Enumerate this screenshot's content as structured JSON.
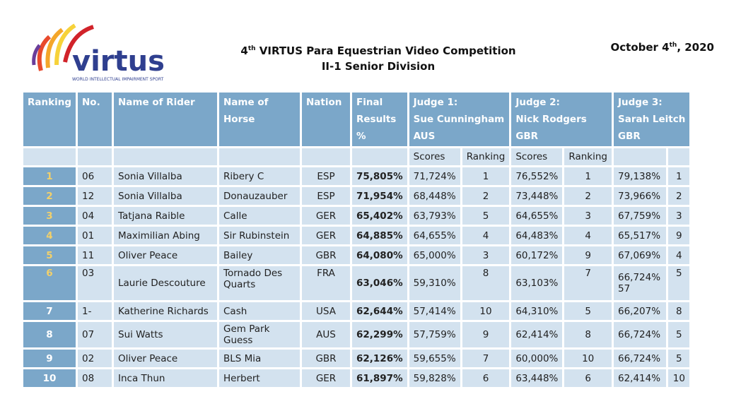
{
  "header": {
    "logo": {
      "name": "virtus",
      "tagline": "WORLD INTELLECTUAL IMPAIRMENT SPORT"
    },
    "title": [
      "4",
      "th",
      " VIRTUS Para Equestrian Video Competition"
    ],
    "subtitle": "II-1 Senior Division",
    "date": [
      "October 4",
      "th",
      ", 2020"
    ]
  },
  "table": {
    "columns": [
      "Ranking",
      "No.",
      "Name of Rider",
      "Name of Horse",
      "Nation",
      "Final Results %"
    ],
    "judges": [
      [
        "Judge 1:",
        "Sue Cunningham",
        "AUS"
      ],
      [
        "Judge 2:",
        "Nick Rodgers",
        "GBR"
      ],
      [
        "Judge 3:",
        "Sarah Leitch",
        "GBR"
      ]
    ],
    "subheaders": [
      "Scores",
      "Ranking",
      "Scores",
      "Ranking"
    ],
    "rows": [
      [
        "1",
        "06",
        "Sonia Villalba",
        "Ribery C",
        "ESP",
        "75,805%",
        "71,724%",
        "1",
        "76,552%",
        "1",
        "79,138%",
        "1"
      ],
      [
        "2",
        "12",
        "Sonia Villalba",
        "Donauzauber",
        "ESP",
        "71,954%",
        "68,448%",
        "2",
        "73,448%",
        "2",
        "73,966%",
        "2"
      ],
      [
        "3",
        "04",
        "Tatjana Raible",
        "Calle",
        "GER",
        "65,402%",
        "63,793%",
        "5",
        "64,655%",
        "3",
        "67,759%",
        "3"
      ],
      [
        "4",
        "01",
        "Maximilian Abing",
        "Sir Rubinstein",
        "GER",
        "64,885%",
        "64,655%",
        "4",
        "64,483%",
        "4",
        "65,517%",
        "9"
      ],
      [
        "5",
        "11",
        "Oliver Peace",
        "Bailey",
        "GBR",
        "64,080%",
        "65,000%",
        "3",
        "60,172%",
        "9",
        "67,069%",
        "4"
      ],
      [
        "6",
        "03",
        "Laurie Descouture",
        "Tornado Des Quarts",
        "FRA",
        "63,046%",
        "59,310%",
        "8",
        "63,103%",
        "7",
        "66,724%\n57",
        "5"
      ],
      [
        "7",
        "1-",
        "Katherine Richards",
        "Cash",
        "USA",
        "62,644%",
        "57,414%",
        "10",
        "64,310%",
        "5",
        "66,207%",
        "8"
      ],
      [
        "8",
        "07",
        "Sui Watts",
        "Gem Park Guess",
        "AUS",
        "62,299%",
        "57,759%",
        "9",
        "62,414%",
        "8",
        "66,724%",
        "5"
      ],
      [
        "9",
        "02",
        "Oliver Peace",
        "BLS Mia",
        "GBR",
        "62,126%",
        "59,655%",
        "7",
        "60,000%",
        "10",
        "66,724%",
        "5"
      ],
      [
        "10",
        "08",
        "Inca Thun",
        "Herbert",
        "GER",
        "61,897%",
        "59,828%",
        "6",
        "63,448%",
        "6",
        "62,414%",
        "10"
      ]
    ]
  }
}
